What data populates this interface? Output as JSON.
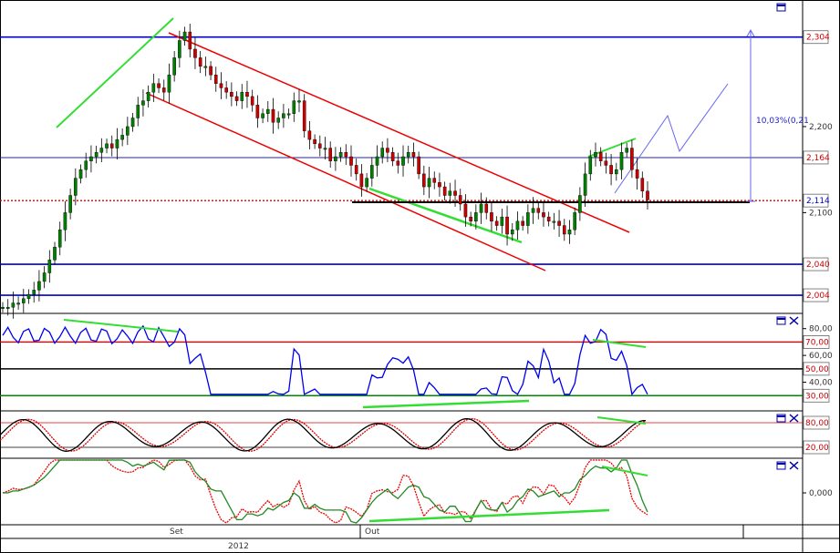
{
  "colors": {
    "background": "#ffffff",
    "level_line": "#0000cc",
    "channel": "#ee0000",
    "trendline": "#33dd33",
    "rsi_line": "#0000ee",
    "stoch_k": "#000000",
    "stoch_d": "#dd0000",
    "osc_fast": "#ee0000",
    "osc_slow": "#228822",
    "candle_up": "#008000",
    "candle_down": "#cc0000",
    "projection": "#6666ee",
    "box_text_red": "#cc0000",
    "box_text_blue": "#0000cc"
  },
  "panels": {
    "price": {
      "y_range": [
        1.985,
        2.345
      ],
      "price_boxes": [
        {
          "label": "2,304",
          "value": 2.304,
          "color": "red"
        },
        {
          "label": "2,164",
          "value": 2.164,
          "color": "red"
        },
        {
          "label": "2,114",
          "value": 2.114,
          "color": "blue"
        },
        {
          "label": "2,040",
          "value": 2.04,
          "color": "red"
        },
        {
          "label": "2,004",
          "value": 2.004,
          "color": "red"
        }
      ],
      "ticks": [
        {
          "label": "2,200",
          "value": 2.2
        },
        {
          "label": "2,100",
          "value": 2.1
        }
      ],
      "horizontal_levels": [
        2.304,
        2.164,
        2.04,
        2.004
      ],
      "current_price": 2.114,
      "support_level": 2.112,
      "projection_label": "10,03%(0,21",
      "icon": "window-restore-icon"
    },
    "rsi": {
      "y_range": [
        20,
        90
      ],
      "ticks": [
        {
          "label": "80,00",
          "value": 80
        },
        {
          "label": "60,00",
          "value": 60
        },
        {
          "label": "40,00",
          "value": 40
        }
      ],
      "boxes": [
        {
          "label": "70,00",
          "value": 70
        },
        {
          "label": "50,00",
          "value": 50
        },
        {
          "label": "30,00",
          "value": 30
        }
      ],
      "icons": [
        "window-restore-icon",
        "close-icon"
      ]
    },
    "stochastic": {
      "y_range": [
        0,
        100
      ],
      "boxes": [
        {
          "label": "80,00",
          "value": 80
        },
        {
          "label": "20,00",
          "value": 20
        }
      ],
      "icons": [
        "window-restore-icon",
        "close-icon"
      ]
    },
    "oscillator": {
      "ticks": [
        {
          "label": "0,000",
          "value": 0
        }
      ],
      "icons": [
        "window-restore-icon",
        "close-icon"
      ]
    }
  },
  "time_axis": {
    "month_labels": [
      {
        "label": "Set"
      },
      {
        "label": "Out"
      }
    ],
    "year_label": "2012"
  },
  "chart_data": {
    "type": "line",
    "instrument_series": "candlestick price with RSI, stochastic and oscillator sub-panels",
    "price_close": [
      1.99,
      1.99,
      1.995,
      1.995,
      2.0,
      2.005,
      2.01,
      2.02,
      2.03,
      2.045,
      2.06,
      2.08,
      2.1,
      2.12,
      2.14,
      2.15,
      2.16,
      2.165,
      2.17,
      2.175,
      2.18,
      2.175,
      2.185,
      2.19,
      2.2,
      2.21,
      2.225,
      2.23,
      2.24,
      2.25,
      2.245,
      2.24,
      2.26,
      2.28,
      2.3,
      2.31,
      2.29,
      2.28,
      2.27,
      2.27,
      2.26,
      2.25,
      2.245,
      2.24,
      2.235,
      2.23,
      2.24,
      2.235,
      2.225,
      2.21,
      2.215,
      2.22,
      2.205,
      2.21,
      2.215,
      2.215,
      2.23,
      2.23,
      2.195,
      2.185,
      2.18,
      2.175,
      2.175,
      2.16,
      2.165,
      2.17,
      2.165,
      2.155,
      2.145,
      2.13,
      2.14,
      2.155,
      2.165,
      2.175,
      2.17,
      2.16,
      2.155,
      2.165,
      2.17,
      2.165,
      2.145,
      2.13,
      2.14,
      2.135,
      2.13,
      2.12,
      2.125,
      2.12,
      2.11,
      2.095,
      2.09,
      2.1,
      2.11,
      2.1,
      2.09,
      2.085,
      2.095,
      2.075,
      2.08,
      2.09,
      2.085,
      2.1,
      2.105,
      2.1,
      2.095,
      2.09,
      2.09,
      2.085,
      2.075,
      2.08,
      2.1,
      2.12,
      2.145,
      2.165,
      2.17,
      2.16,
      2.155,
      2.145,
      2.15,
      2.17,
      2.175,
      2.15,
      2.14,
      2.125,
      2.115
    ]
  }
}
